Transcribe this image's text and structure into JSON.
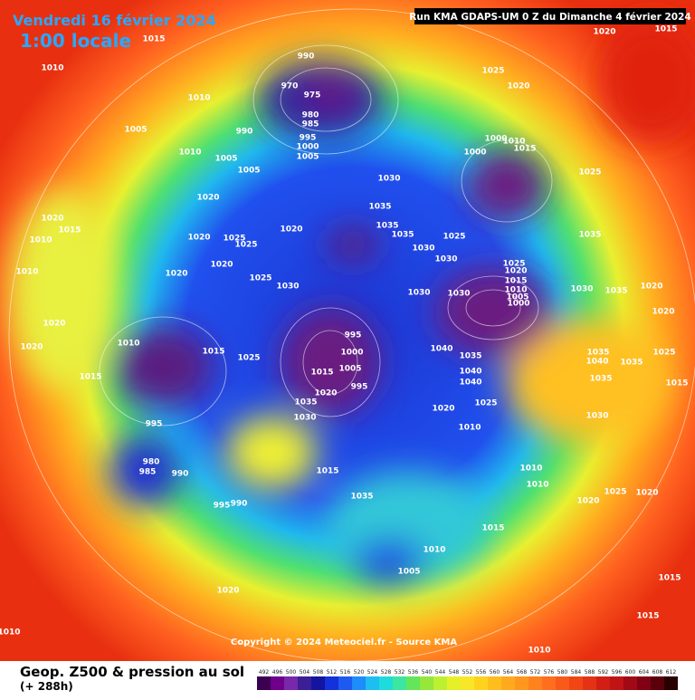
{
  "header": {
    "title": "Vendredi 16 février 2024",
    "subtitle": "1:00 locale",
    "run": "Run KMA GDAPS-UM 0 Z du Dimanche 4 février 2024"
  },
  "copyright": "Copyright © 2024 Meteociel.fr - Source KMA",
  "footer": {
    "title": "Geop. Z500 & pression au sol",
    "lead": "(+ 288h)"
  },
  "legend": {
    "labels": [
      492,
      496,
      500,
      504,
      508,
      512,
      516,
      520,
      524,
      528,
      532,
      536,
      540,
      544,
      548,
      552,
      556,
      560,
      564,
      568,
      572,
      576,
      580,
      584,
      588,
      592,
      596,
      600,
      604,
      608,
      612
    ]
  },
  "isobars": [
    990,
    970,
    975,
    980,
    985,
    990,
    995,
    1000,
    1005,
    1010,
    1005,
    1010,
    1005,
    1005,
    1015,
    1010,
    1020,
    1015,
    1025,
    1020,
    1000,
    1010,
    1015,
    1000,
    1025,
    1030,
    1035,
    1035,
    1035,
    1030,
    1025,
    1030,
    1035,
    1025,
    1020,
    1015,
    1010,
    1005,
    1000,
    1030,
    1030,
    1030,
    1035,
    1020,
    1020,
    1025,
    1040,
    1035,
    1040,
    1040,
    1025,
    1020,
    1010,
    995,
    1000,
    1005,
    995,
    1015,
    1020,
    1035,
    1030,
    1010,
    1015,
    1025,
    995,
    980,
    985,
    990,
    995,
    990,
    1015,
    1035,
    1015,
    1010,
    1005,
    1020,
    1010,
    1010,
    1015,
    1015,
    1020,
    1025,
    1020,
    1010,
    1010,
    1020,
    1015,
    1010,
    1010,
    1020,
    1020,
    1015,
    1020,
    1020,
    1025,
    1025,
    1020,
    1020,
    1025,
    1030,
    1020,
    1035,
    1040,
    1035,
    1035,
    1030,
    1015
  ]
}
